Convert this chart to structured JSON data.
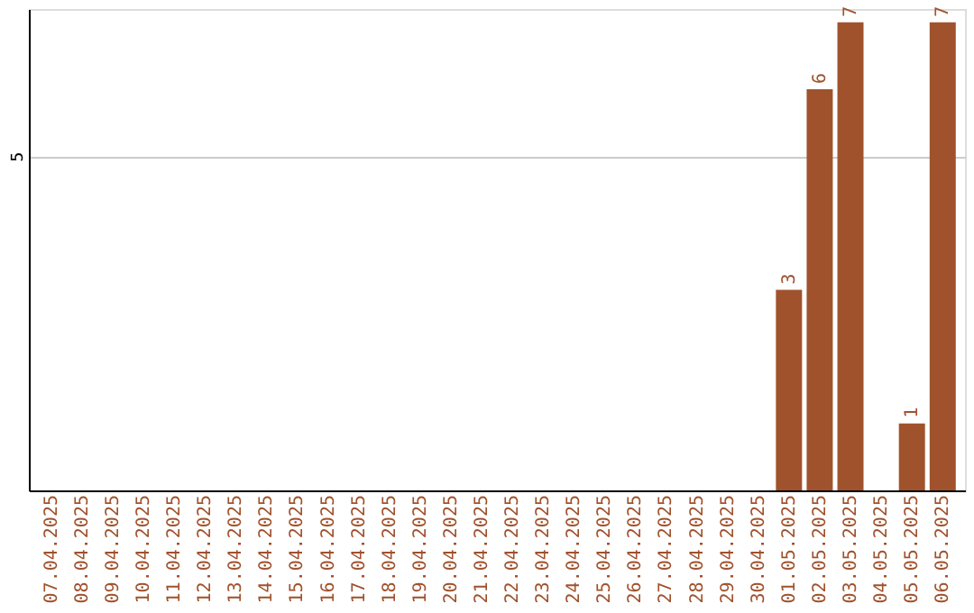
{
  "chart_data": {
    "type": "bar",
    "categories": [
      "07.04.2025",
      "08.04.2025",
      "09.04.2025",
      "10.04.2025",
      "11.04.2025",
      "12.04.2025",
      "13.04.2025",
      "14.04.2025",
      "15.04.2025",
      "16.04.2025",
      "17.04.2025",
      "18.04.2025",
      "19.04.2025",
      "20.04.2025",
      "21.04.2025",
      "22.04.2025",
      "23.04.2025",
      "24.04.2025",
      "25.04.2025",
      "26.04.2025",
      "27.04.2025",
      "28.04.2025",
      "29.04.2025",
      "30.04.2025",
      "01.05.2025",
      "02.05.2025",
      "03.05.2025",
      "04.05.2025",
      "05.05.2025",
      "06.05.2025"
    ],
    "values": [
      null,
      null,
      null,
      null,
      null,
      null,
      null,
      null,
      null,
      null,
      null,
      null,
      null,
      null,
      null,
      null,
      null,
      null,
      null,
      null,
      null,
      null,
      null,
      null,
      3,
      6,
      7,
      null,
      1,
      7
    ],
    "color": "#a0522d",
    "ylim": [
      0,
      7.2
    ],
    "yticks": [
      5
    ],
    "grid": "y",
    "data_labels": true
  }
}
